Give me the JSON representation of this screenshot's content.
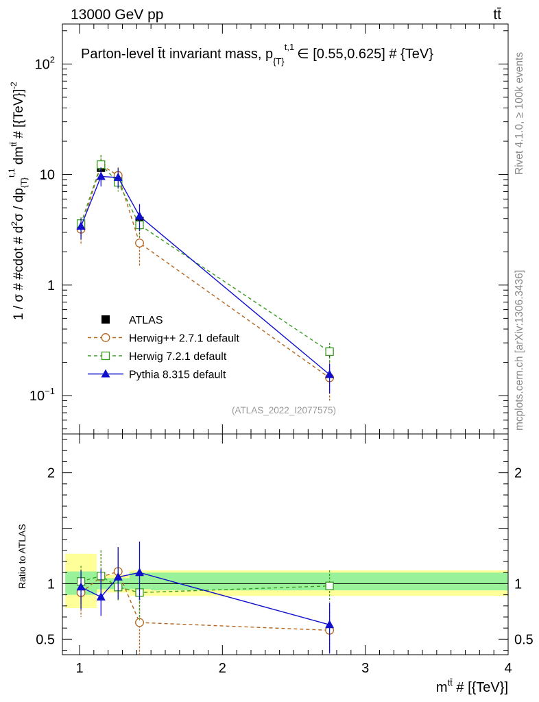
{
  "header": {
    "energy_label": "13000 GeV pp",
    "process_label": "tt̄"
  },
  "side_labels": {
    "rivet": "Rivet 4.1.0, ≥ 100k events",
    "mcplots": "mcplots.cern.ch [arXiv:1306.3436]"
  },
  "chart_data": {
    "type": "line",
    "title": "Parton-level t̄t invariant mass, p{T}t,1 ∈ [0.55,0.625] # {TeV}",
    "title_parts": {
      "main": "Parton-level t̄t invariant mass, p",
      "sub": "{T}",
      "sup": "t,1",
      "tail": "∈ [0.55,0.625] # {TeV}"
    },
    "analysis_id": "(ATLAS_2022_I2077575)",
    "xlabel": "m^{tt̄} # [{TeV}]",
    "xlabel_parts": {
      "base": "m",
      "sup": "tt̄",
      "tail": " # [{TeV}]"
    },
    "ylabel": "1 / σ # #cdot # d²σ / dp{T}t,1 dm^{tt̄} # [{TeV}]^-2",
    "ylabel_parts": {
      "p1": "1 / σ # #cdot # d",
      "sup2": "2",
      "p2": "σ / dp",
      "sub_t": "{T}",
      "sup_t1": "t,1",
      "p3": " dm",
      "sup_tt": "tt̄",
      "p4": " # [{TeV}]",
      "sup_m2": "-2"
    },
    "ratio_ylabel": "Ratio to ATLAS",
    "xlim": [
      0.88,
      4.0
    ],
    "ylim": [
      0.045,
      230
    ],
    "yscale": "log",
    "ratio_ylim": [
      0.36,
      2.35
    ],
    "x_ticks": [
      1,
      2,
      3,
      4
    ],
    "y_tick_labels": [
      {
        "value": 100,
        "base": "10",
        "exp": "2"
      },
      {
        "value": 10,
        "base": "10",
        "exp": ""
      },
      {
        "value": 1,
        "base": "1",
        "exp": ""
      },
      {
        "value": 0.1,
        "base": "10",
        "exp": "−1"
      }
    ],
    "ratio_ticks": [
      0.5,
      1,
      2
    ],
    "legend_position": "left-center",
    "x_bins": [
      {
        "x": 1.01,
        "lo": 0.9,
        "hi": 1.12
      },
      {
        "x": 1.15,
        "lo": 1.12,
        "hi": 1.2
      },
      {
        "x": 1.27,
        "lo": 1.2,
        "hi": 1.35
      },
      {
        "x": 1.42,
        "lo": 1.35,
        "hi": 1.5
      },
      {
        "x": 2.75,
        "lo": 1.5,
        "hi": 4.0
      }
    ],
    "band_ratio_inner": [
      {
        "lo": 0.9,
        "hi": 1.12,
        "down": 0.9,
        "up": 1.11
      },
      {
        "lo": 1.12,
        "hi": 1.2,
        "down": 0.95,
        "up": 1.05
      },
      {
        "lo": 1.2,
        "hi": 1.35,
        "down": 0.95,
        "up": 1.05
      },
      {
        "lo": 1.35,
        "hi": 1.5,
        "down": 0.95,
        "up": 1.1
      },
      {
        "lo": 1.5,
        "hi": 4.0,
        "down": 0.94,
        "up": 1.1
      }
    ],
    "band_ratio_outer": [
      {
        "lo": 0.9,
        "hi": 1.12,
        "down": 0.78,
        "up": 1.27
      },
      {
        "lo": 1.12,
        "hi": 1.2,
        "down": 0.92,
        "up": 1.08
      },
      {
        "lo": 1.2,
        "hi": 1.35,
        "down": 0.92,
        "up": 1.08
      },
      {
        "lo": 1.35,
        "hi": 1.5,
        "down": 0.89,
        "up": 1.12
      },
      {
        "lo": 1.5,
        "hi": 4.0,
        "down": 0.89,
        "up": 1.12
      }
    ],
    "series": [
      {
        "name": "ATLAS",
        "color": "#000000",
        "marker": "square-filled",
        "dash": "none",
        "connect": false,
        "x": [
          1.01,
          1.15,
          1.27,
          1.42,
          2.75
        ],
        "y": [
          3.5,
          11.5,
          8.7,
          3.8,
          0.25
        ],
        "err_up": [
          0.5,
          1.3,
          1.0,
          0.5,
          0.03
        ],
        "err_down": [
          0.5,
          1.3,
          1.0,
          0.5,
          0.03
        ],
        "ratio": [
          1.0,
          1.0,
          1.0,
          1.0,
          1.0
        ],
        "ratio_err_up": [
          0,
          0,
          0,
          0,
          0
        ],
        "ratio_err_down": [
          0,
          0,
          0,
          0,
          0
        ]
      },
      {
        "name": "Herwig++ 2.7.1 default",
        "color": "#b5651d",
        "marker": "circle-open",
        "dash": "5,4",
        "connect": true,
        "x": [
          1.01,
          1.15,
          1.27,
          1.42,
          2.75
        ],
        "y": [
          3.2,
          12.2,
          9.8,
          2.4,
          0.145
        ],
        "err_up": [
          0.6,
          2.8,
          1.8,
          0.8,
          0.06
        ],
        "err_down": [
          0.9,
          2.3,
          1.8,
          0.9,
          0.055
        ],
        "ratio": [
          0.92,
          1.06,
          1.11,
          0.65,
          0.58
        ],
        "ratio_err_up": [
          0.16,
          0.24,
          0.21,
          0.25,
          0.23
        ],
        "ratio_err_down": [
          0.22,
          0.2,
          0.2,
          0.3,
          0.2
        ]
      },
      {
        "name": "Herwig 7.2.1 default",
        "color": "#3a9a22",
        "marker": "square-open",
        "dash": "5,4",
        "connect": true,
        "x": [
          1.01,
          1.15,
          1.27,
          1.42,
          2.75
        ],
        "y": [
          3.6,
          12.3,
          8.5,
          3.5,
          0.25
        ],
        "err_up": [
          0.5,
          2.6,
          1.8,
          0.8,
          0.05
        ],
        "err_down": [
          0.7,
          2.0,
          1.5,
          0.8,
          0.05
        ],
        "ratio": [
          1.02,
          1.07,
          0.97,
          0.92,
          0.98
        ],
        "ratio_err_up": [
          0.14,
          0.23,
          0.3,
          0.2,
          0.14
        ],
        "ratio_err_down": [
          0.2,
          0.18,
          0.12,
          0.25,
          0.14
        ]
      },
      {
        "name": "Pythia 8.315 default",
        "color": "#1010cc",
        "marker": "triangle-filled",
        "dash": "none",
        "connect": true,
        "x": [
          1.01,
          1.15,
          1.27,
          1.42,
          2.75
        ],
        "y": [
          3.4,
          9.6,
          9.4,
          4.2,
          0.155
        ],
        "err_up": [
          0.6,
          2.0,
          2.0,
          1.2,
          0.04
        ],
        "err_down": [
          0.8,
          1.8,
          1.8,
          1.1,
          0.05
        ],
        "ratio": [
          0.97,
          0.88,
          1.06,
          1.1,
          0.63
        ],
        "ratio_err_up": [
          0.15,
          0.25,
          0.27,
          0.28,
          0.2
        ],
        "ratio_err_down": [
          0.2,
          0.17,
          0.2,
          0.25,
          0.26
        ]
      }
    ]
  }
}
